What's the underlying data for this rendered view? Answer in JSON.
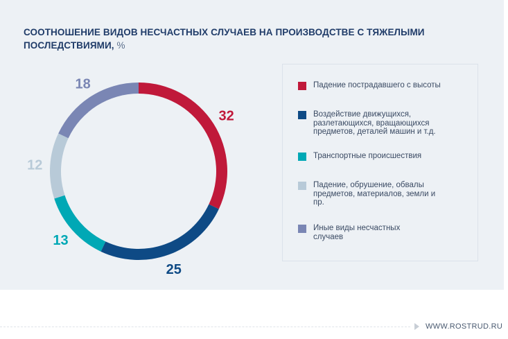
{
  "title": "СООТНОШЕНИЕ ВИДОВ НЕСЧАСТНЫХ СЛУЧАЕВ НА ПРОИЗВОДСТВЕ С ТЯЖЕЛЫМИ ПОСЛЕДСТВИЯМИ,",
  "title_unit": "%",
  "footer": {
    "site": "WWW.ROSTRUD.RU"
  },
  "chart_data": {
    "type": "pie",
    "variant": "donut",
    "title": "СООТНОШЕНИЕ ВИДОВ НЕСЧАСТНЫХ СЛУЧАЕВ НА ПРОИЗВОДСТВЕ С ТЯЖЕЛЫМИ ПОСЛЕДСТВИЯМИ, %",
    "legend_position": "right",
    "slices": [
      {
        "label": "Падение пострадавшего с высоты",
        "value": 32,
        "color": "#c0193a"
      },
      {
        "label": "Воздействие движущихся, разлетающихся, вращающихся предметов, деталей машин и т.д.",
        "value": 25,
        "color": "#0e4a85"
      },
      {
        "label": "Транспортные происшествия",
        "value": 13,
        "color": "#00a8b5"
      },
      {
        "label": "Падение, обрушение, обвалы предметов, материалов, земли и пр.",
        "value": 12,
        "color": "#b8cad8"
      },
      {
        "label": "Иные виды несчастных случаев",
        "value": 18,
        "color": "#7a86b4"
      }
    ]
  }
}
